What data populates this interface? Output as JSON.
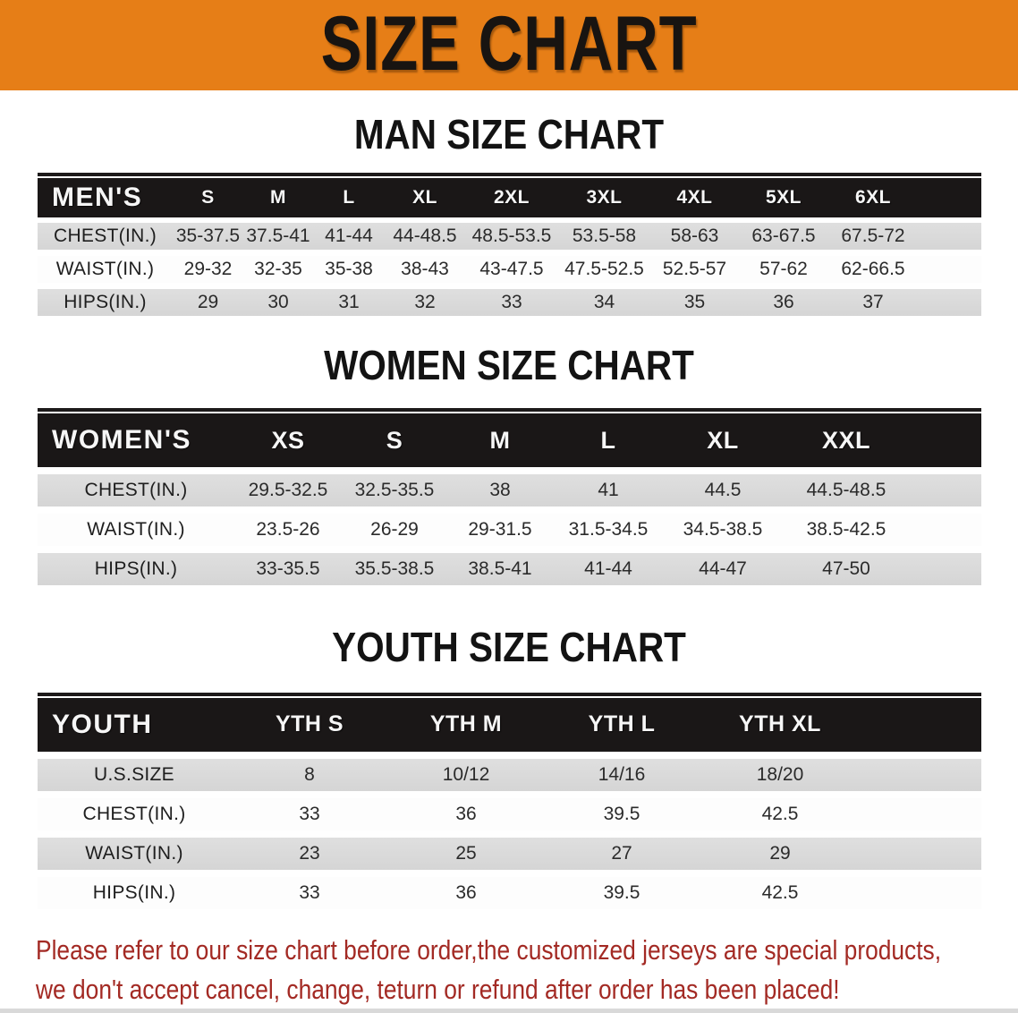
{
  "banner": {
    "title": "SIZE CHART",
    "bg_color": "#E67E17"
  },
  "charts": {
    "man": {
      "title": "MAN SIZE CHART",
      "corner_label": "MEN'S",
      "sizes": [
        "S",
        "M",
        "L",
        "XL",
        "2XL",
        "3XL",
        "4XL",
        "5XL",
        "6XL"
      ],
      "rows": [
        {
          "label": "CHEST(IN.)",
          "values": [
            "35-37.5",
            "37.5-41",
            "41-44",
            "44-48.5",
            "48.5-53.5",
            "53.5-58",
            "58-63",
            "63-67.5",
            "67.5-72"
          ]
        },
        {
          "label": "WAIST(IN.)",
          "values": [
            "29-32",
            "32-35",
            "35-38",
            "38-43",
            "43-47.5",
            "47.5-52.5",
            "52.5-57",
            "57-62",
            "62-66.5"
          ]
        },
        {
          "label": "HIPS(IN.)",
          "values": [
            "29",
            "30",
            "31",
            "32",
            "33",
            "34",
            "35",
            "36",
            "37"
          ]
        }
      ]
    },
    "woman": {
      "title": "WOMEN SIZE CHART",
      "corner_label": "WOMEN'S",
      "sizes": [
        "XS",
        "S",
        "M",
        "L",
        "XL",
        "XXL"
      ],
      "rows": [
        {
          "label": "CHEST(IN.)",
          "values": [
            "29.5-32.5",
            "32.5-35.5",
            "38",
            "41",
            "44.5",
            "44.5-48.5"
          ]
        },
        {
          "label": "WAIST(IN.)",
          "values": [
            "23.5-26",
            "26-29",
            "29-31.5",
            "31.5-34.5",
            "34.5-38.5",
            "38.5-42.5"
          ]
        },
        {
          "label": "HIPS(IN.)",
          "values": [
            "33-35.5",
            "35.5-38.5",
            "38.5-41",
            "41-44",
            "44-47",
            "47-50"
          ]
        }
      ]
    },
    "youth": {
      "title": "YOUTH SIZE CHART",
      "corner_label": "YOUTH",
      "sizes": [
        "YTH S",
        "YTH M",
        "YTH L",
        "YTH XL"
      ],
      "rows": [
        {
          "label": "U.S.SIZE",
          "values": [
            "8",
            "10/12",
            "14/16",
            "18/20"
          ]
        },
        {
          "label": "CHEST(IN.)",
          "values": [
            "33",
            "36",
            "39.5",
            "42.5"
          ]
        },
        {
          "label": "WAIST(IN.)",
          "values": [
            "23",
            "25",
            "27",
            "29"
          ]
        },
        {
          "label": "HIPS(IN.)",
          "values": [
            "33",
            "36",
            "39.5",
            "42.5"
          ]
        }
      ]
    }
  },
  "note": {
    "line1": "Please refer to our size chart before order,the customized jerseys are special products,",
    "line2": "we don't accept cancel, change, teturn or refund after order has been placed!",
    "text_color": "#A32A24"
  }
}
